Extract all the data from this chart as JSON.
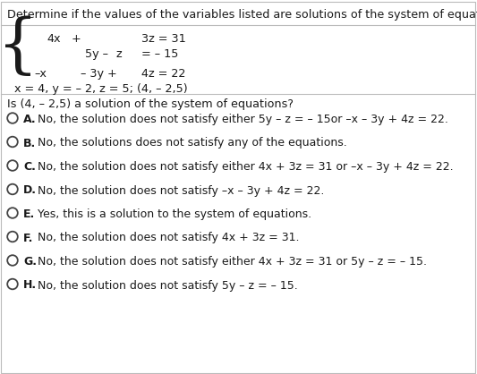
{
  "title": "Determine if the values of the variables listed are solutions of the system of equations.",
  "question": "Is (4, – 2,5) a solution of the system of equations?",
  "options": [
    {
      "letter": "A.",
      "text": "No, the solution does not satisfy either 5y – z = – 15or –x – 3y + 4z = 22."
    },
    {
      "letter": "B.",
      "text": "No, the solutions does not satisfy any of the equations."
    },
    {
      "letter": "C.",
      "text": "No, the solution does not satisfy either 4x + 3z = 31 or –x – 3y + 4z = 22."
    },
    {
      "letter": "D.",
      "text": "No, the solution does not satisfy –x – 3y + 4z = 22."
    },
    {
      "letter": "E.",
      "text": "Yes, this is a solution to the system of equations."
    },
    {
      "letter": "F.",
      "text": "No, the solution does not satisfy 4x + 3z = 31."
    },
    {
      "letter": "G.",
      "text": "No, the solution does not satisfy either 4x + 3z = 31 or 5y – z = – 15."
    },
    {
      "letter": "H.",
      "text": "No, the solution does not satisfy 5y – z = – 15."
    }
  ],
  "bg_color": "#ffffff",
  "text_color": "#1a1a1a",
  "border_color": "#bbbbbb",
  "font_size": 9.0,
  "title_font_size": 9.2
}
